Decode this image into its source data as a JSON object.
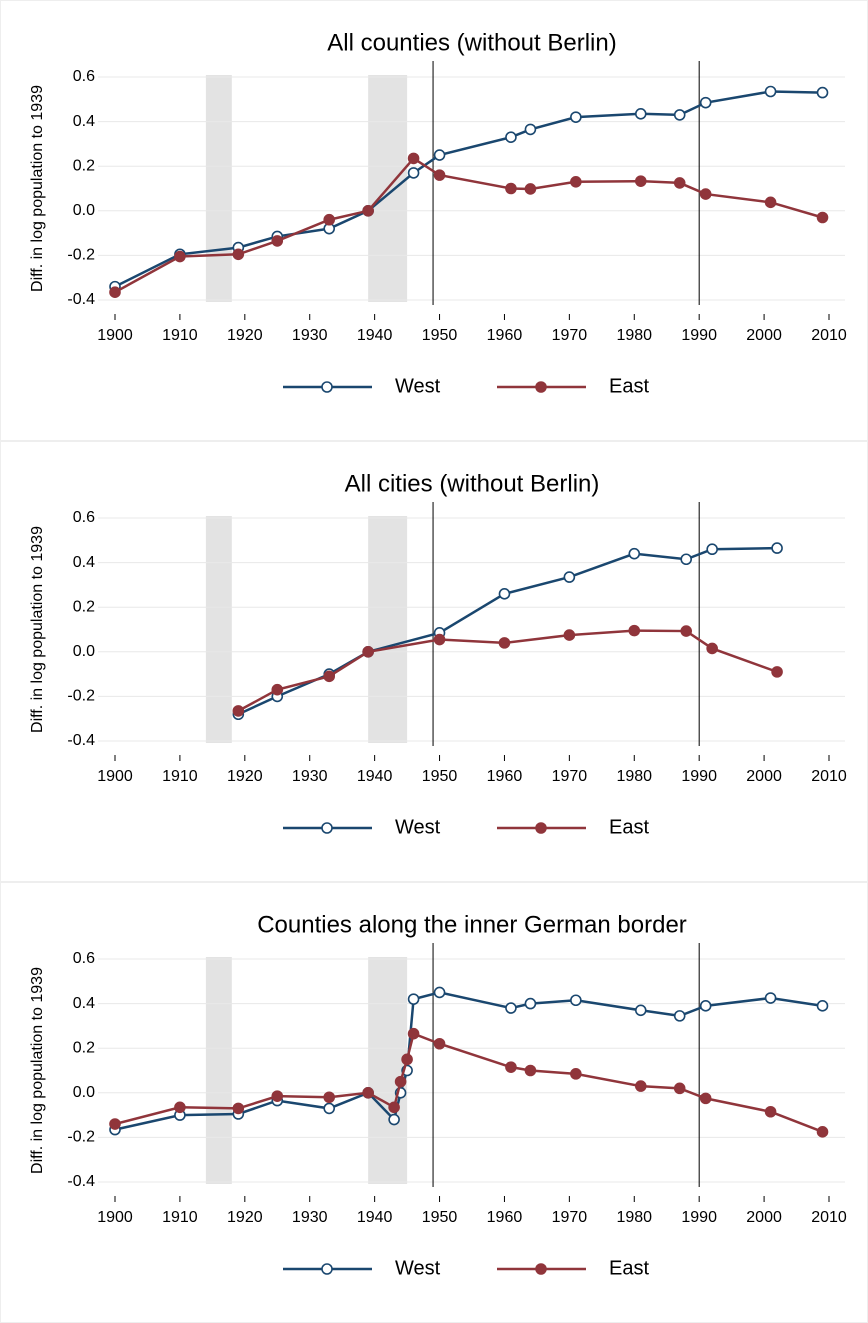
{
  "chart_data": [
    {
      "type": "line",
      "title": "All counties (without Berlin)",
      "y_label": "Diff. in log population to 1939",
      "x": [
        1900,
        1910,
        1919,
        1925,
        1933,
        1939,
        1946,
        1950,
        1961,
        1964,
        1971,
        1981,
        1987,
        1991,
        2001,
        2009
      ],
      "series": [
        {
          "name": "West",
          "color": "#1a476f",
          "marker": "hollow",
          "values": [
            -0.34,
            -0.195,
            -0.165,
            -0.115,
            -0.08,
            0,
            0.17,
            0.25,
            0.33,
            0.365,
            0.42,
            0.435,
            0.43,
            0.485,
            0.535,
            0.53
          ]
        },
        {
          "name": "East",
          "color": "#90353b",
          "marker": "filled",
          "values": [
            -0.365,
            -0.205,
            -0.195,
            -0.135,
            -0.04,
            0,
            0.235,
            0.16,
            0.1,
            0.098,
            0.13,
            0.133,
            0.125,
            0.075,
            0.038,
            -0.03
          ]
        }
      ],
      "xlim": [
        1900,
        2010
      ],
      "xticks": [
        1900,
        1910,
        1920,
        1930,
        1940,
        1950,
        1960,
        1970,
        1980,
        1990,
        2000,
        2010
      ],
      "ylim": [
        -0.4,
        0.6
      ],
      "yticks": [
        0.6,
        0.4,
        0.2,
        {
          "value": 0,
          "label": "0.0"
        },
        -0.2,
        -0.4
      ],
      "grid": true,
      "shaded_periods": [
        [
          1914,
          1918
        ],
        [
          1939,
          1945
        ]
      ],
      "vlines": [
        1949,
        1990
      ]
    },
    {
      "type": "line",
      "title": "All cities (without Berlin)",
      "y_label": "Diff. in log population to 1939",
      "x": [
        1919,
        1925,
        1933,
        1939,
        1950,
        1960,
        1970,
        1980,
        1988,
        1992,
        2002
      ],
      "series": [
        {
          "name": "West",
          "color": "#1a476f",
          "marker": "hollow",
          "values": [
            -0.28,
            -0.2,
            -0.1,
            0,
            0.085,
            0.26,
            0.335,
            0.44,
            0.415,
            0.46,
            0.465
          ]
        },
        {
          "name": "East",
          "color": "#90353b",
          "marker": "filled",
          "values": [
            -0.265,
            -0.17,
            -0.11,
            0,
            0.055,
            0.04,
            0.075,
            0.095,
            0.093,
            0.015,
            -0.09
          ]
        }
      ],
      "xlim": [
        1900,
        2010
      ],
      "xticks": [
        1900,
        1910,
        1920,
        1930,
        1940,
        1950,
        1960,
        1970,
        1980,
        1990,
        2000,
        2010
      ],
      "ylim": [
        -0.4,
        0.6
      ],
      "yticks": [
        0.6,
        0.4,
        0.2,
        {
          "value": 0,
          "label": "0.0"
        },
        -0.2,
        -0.4
      ],
      "grid": true,
      "shaded_periods": [
        [
          1914,
          1918
        ],
        [
          1939,
          1945
        ]
      ],
      "vlines": [
        1949,
        1990
      ]
    },
    {
      "type": "line",
      "title": "Counties along the inner German border",
      "y_label": "Diff. in log population to 1939",
      "x": [
        1900,
        1910,
        1919,
        1925,
        1933,
        1939,
        1943,
        1944,
        1945,
        1946,
        1950,
        1961,
        1964,
        1971,
        1981,
        1987,
        1991,
        2001,
        2009
      ],
      "series": [
        {
          "name": "West",
          "color": "#1a476f",
          "marker": "hollow",
          "values": [
            -0.165,
            -0.1,
            -0.095,
            -0.035,
            -0.07,
            0,
            -0.12,
            0,
            0.1,
            0.42,
            0.45,
            0.38,
            0.4,
            0.415,
            0.37,
            0.345,
            0.39,
            0.425,
            0.39
          ]
        },
        {
          "name": "East",
          "color": "#90353b",
          "marker": "filled",
          "values": [
            -0.14,
            -0.065,
            -0.07,
            -0.015,
            -0.02,
            0,
            -0.065,
            0.05,
            0.15,
            0.265,
            0.22,
            0.115,
            0.1,
            0.085,
            0.03,
            0.02,
            -0.025,
            -0.085,
            -0.175
          ]
        }
      ],
      "xlim": [
        1900,
        2010
      ],
      "xticks": [
        1900,
        1910,
        1920,
        1930,
        1940,
        1950,
        1960,
        1970,
        1980,
        1990,
        2000,
        2010
      ],
      "ylim": [
        -0.4,
        0.6
      ],
      "yticks": [
        0.6,
        0.4,
        0.2,
        {
          "value": 0,
          "label": "0.0"
        },
        -0.2,
        -0.4
      ],
      "grid": true,
      "shaded_periods": [
        [
          1914,
          1918
        ],
        [
          1939,
          1945
        ]
      ],
      "vlines": [
        1949,
        1990
      ]
    }
  ]
}
